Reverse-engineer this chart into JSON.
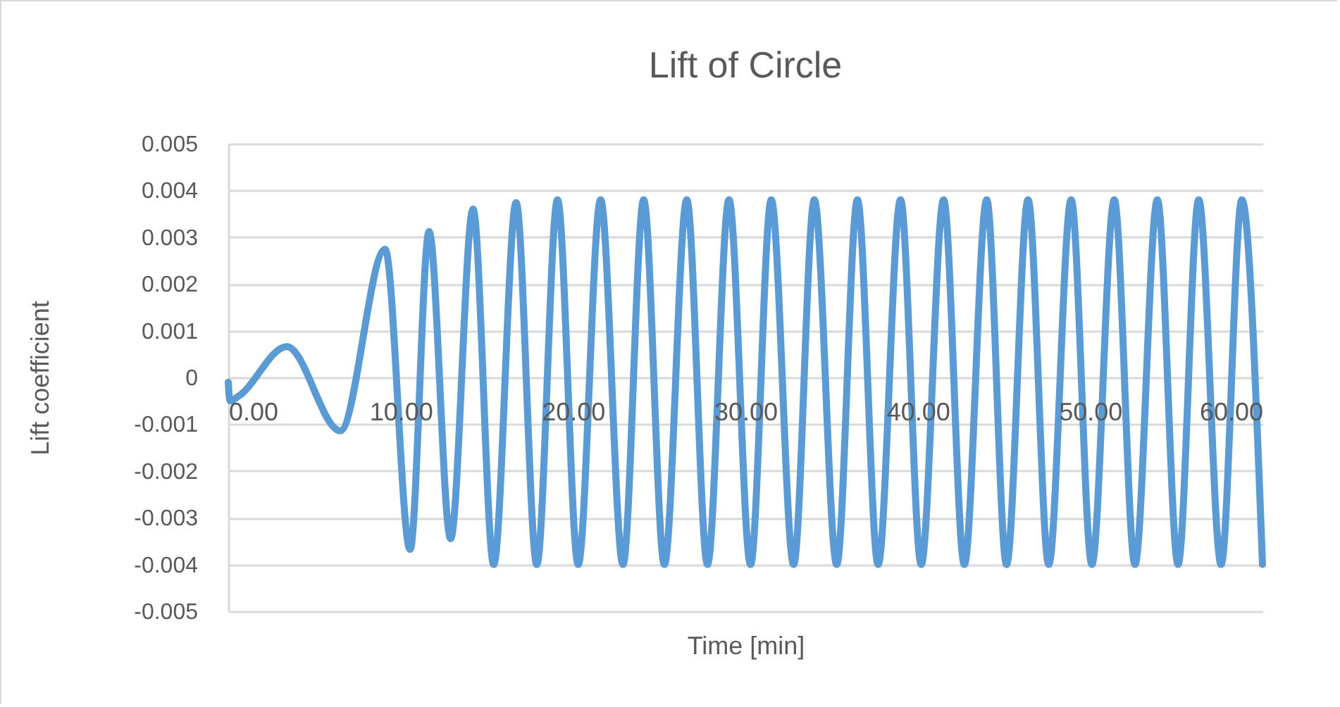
{
  "chart_data": {
    "type": "line",
    "title": "Lift of Circle",
    "xlabel": "Time [min]",
    "ylabel": "Lift coefficient",
    "x": [
      0,
      0.1,
      0.6,
      3.4,
      6.5,
      9.1,
      10.55,
      11.65,
      12.9,
      14.2,
      15.4,
      16.7,
      17.9,
      19.1,
      20.3,
      21.6,
      22.9,
      24.1,
      25.3,
      26.6,
      27.8,
      29.05,
      30.3,
      31.5,
      32.8,
      34.0,
      35.3,
      36.5,
      37.7,
      39.0,
      40.2,
      41.5,
      42.7,
      44.0,
      45.15,
      46.4,
      47.6,
      48.9,
      50.1,
      51.4,
      52.6,
      53.9,
      55.1,
      56.3,
      57.6,
      58.8,
      60.0
    ],
    "series": [
      {
        "color": "#5b9bd5",
        "values": [
          -0.0001,
          -0.0005,
          -0.0004,
          0.00066,
          -0.00114,
          0.00274,
          -0.00368,
          0.00312,
          -0.00345,
          0.0036,
          -0.004,
          0.00374,
          -0.004,
          0.0038,
          -0.004,
          0.0038,
          -0.004,
          0.0038,
          -0.004,
          0.0038,
          -0.004,
          0.0038,
          -0.004,
          0.0038,
          -0.004,
          0.0038,
          -0.004,
          0.0038,
          -0.004,
          0.0038,
          -0.004,
          0.0038,
          -0.004,
          0.0038,
          -0.004,
          0.0038,
          -0.004,
          0.0038,
          -0.004,
          0.0038,
          -0.004,
          0.0038,
          -0.004,
          0.0038,
          -0.004,
          0.0038,
          -0.004
        ]
      }
    ],
    "xlim": [
      0,
      60
    ],
    "xticks": [
      {
        "value": 0,
        "label": "0.00"
      },
      {
        "value": 10,
        "label": "10.00"
      },
      {
        "value": 20,
        "label": "20.00"
      },
      {
        "value": 30,
        "label": "30.00"
      },
      {
        "value": 40,
        "label": "40.00"
      },
      {
        "value": 50,
        "label": "50.00"
      },
      {
        "value": 60,
        "label": "60.00"
      }
    ],
    "ylim": [
      -0.005,
      0.005
    ],
    "yticks": [
      -0.005,
      -0.004,
      -0.003,
      -0.002,
      -0.001,
      0,
      0.001,
      0.002,
      0.003,
      0.004,
      0.005
    ],
    "grid": "y",
    "marker": "none",
    "line_style": "solid"
  }
}
